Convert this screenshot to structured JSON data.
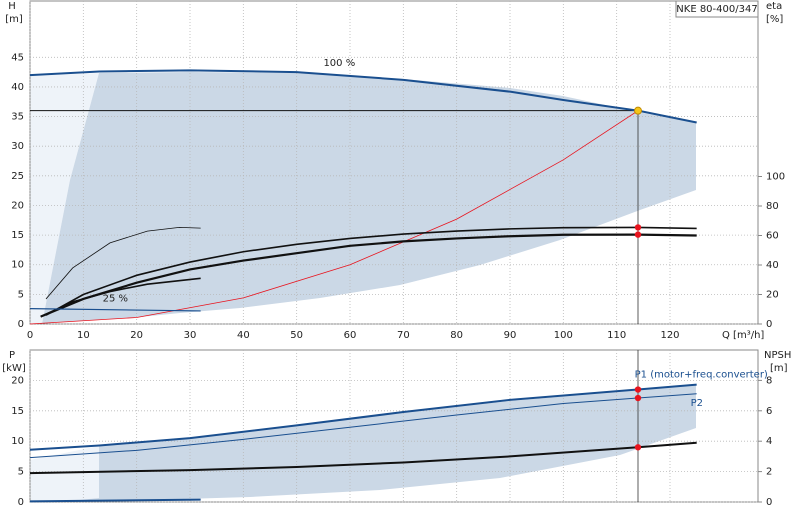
{
  "chart_data": [
    {
      "type": "line",
      "model": "NKE 80-400/347",
      "ylabel": "H",
      "yunit": "[m]",
      "y2label": "eta",
      "y2unit": "[%]",
      "xlabel": "Q [m³/h]",
      "xlim": [
        0,
        136.5
      ],
      "ylim": [
        0,
        54.5
      ],
      "y2lim": [
        0,
        219
      ],
      "xticks": [
        0,
        10,
        20,
        30,
        40,
        50,
        60,
        70,
        80,
        90,
        100,
        110,
        120
      ],
      "yticks": [
        0,
        5,
        10,
        15,
        20,
        25,
        30,
        35,
        40,
        45
      ],
      "y2ticks": [
        0,
        20,
        40,
        60,
        80,
        100
      ],
      "grid": true,
      "duty_point": {
        "x": 114,
        "y": 36
      },
      "annotations": [
        {
          "text": "100 %",
          "x": 58,
          "y": 44
        },
        {
          "text": "25 %",
          "x": 16,
          "y": 4.3
        }
      ],
      "series": [
        {
          "color": "#1a4f8f",
          "width": 2,
          "x": [
            0,
            13,
            30,
            50,
            70,
            90,
            100,
            114,
            125
          ],
          "values": [
            42,
            42.6,
            42.8,
            42.5,
            41.2,
            39.2,
            37.8,
            36,
            34
          ]
        },
        {
          "color": "#e8141e",
          "width": 0.8,
          "x": [
            0,
            20,
            40,
            60,
            80,
            100,
            114
          ],
          "values": [
            0,
            1.1,
            4.4,
            10,
            17.7,
            27.7,
            36
          ]
        },
        {
          "color": "#111",
          "width": 1.6,
          "axis": "y2",
          "marked": true,
          "x": [
            3,
            10,
            20,
            30,
            40,
            50,
            60,
            70,
            80,
            90,
            100,
            114,
            125
          ],
          "values": [
            6,
            20,
            33,
            42,
            49,
            54,
            58,
            61,
            63,
            64.5,
            65.3,
            65.5,
            64.8
          ]
        },
        {
          "color": "#111",
          "width": 2.2,
          "axis": "y2",
          "marked": true,
          "x": [
            2,
            10,
            20,
            30,
            40,
            50,
            60,
            70,
            80,
            90,
            100,
            114,
            125
          ],
          "values": [
            5,
            17,
            28,
            37,
            43,
            48,
            53,
            56,
            58,
            59.5,
            60.5,
            60.6,
            60
          ]
        },
        {
          "color": "#111",
          "width": 0.8,
          "axis": "y2",
          "x": [
            3,
            8,
            15,
            22,
            28,
            32
          ],
          "values": [
            17,
            38,
            55,
            63,
            65.5,
            65
          ]
        },
        {
          "color": "#111",
          "width": 1.6,
          "axis": "y2",
          "x": [
            2,
            8,
            15,
            22,
            32
          ],
          "values": [
            5,
            15,
            22,
            27,
            31
          ]
        },
        {
          "color": "#1a4f8f",
          "width": 1.2,
          "x": [
            0,
            32
          ],
          "values": [
            2.6,
            2.2
          ]
        }
      ]
    },
    {
      "type": "line",
      "ylabel": "P",
      "yunit": "[kW]",
      "y2label": "NPSH",
      "y2unit": "[m]",
      "xlim": [
        0,
        136.5
      ],
      "ylim": [
        0,
        25
      ],
      "y2lim": [
        0,
        10
      ],
      "yticks": [
        0,
        5,
        10,
        15,
        20
      ],
      "y2ticks": [
        0,
        2,
        4,
        6,
        8
      ],
      "grid": true,
      "series": [
        {
          "name": "P1 (motor+freq.converter)",
          "color": "#1a4f8f",
          "width": 2,
          "marked": true,
          "x": [
            0,
            13,
            30,
            50,
            70,
            90,
            114,
            125
          ],
          "values": [
            8.6,
            9.3,
            10.5,
            12.6,
            14.8,
            16.8,
            18.5,
            19.3
          ]
        },
        {
          "name": "P2",
          "color": "#1a4f8f",
          "width": 1,
          "marked": true,
          "x": [
            0,
            20,
            40,
            60,
            80,
            100,
            114,
            125
          ],
          "values": [
            7.3,
            8.5,
            10.3,
            12.3,
            14.3,
            16.2,
            17.1,
            17.8
          ]
        },
        {
          "color": "#111",
          "width": 2,
          "axis": "y2",
          "marked": true,
          "x": [
            0,
            30,
            50,
            70,
            90,
            114,
            125
          ],
          "values": [
            1.9,
            2.1,
            2.3,
            2.6,
            3.0,
            3.6,
            3.9
          ]
        },
        {
          "color": "#1a4f8f",
          "width": 2,
          "x": [
            0,
            32
          ],
          "values": [
            0.1,
            0.4
          ]
        }
      ]
    }
  ]
}
